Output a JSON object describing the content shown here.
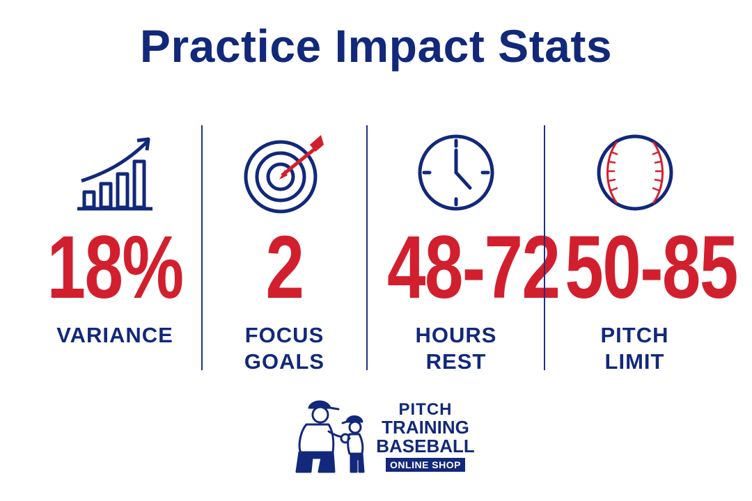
{
  "title": "Practice Impact Stats",
  "colors": {
    "navy": "#12287a",
    "red": "#d21f2e"
  },
  "stats": [
    {
      "icon": "bar-chart-growth-icon",
      "value": "18%",
      "label_lines": [
        "VARIANCE"
      ]
    },
    {
      "icon": "target-arrow-icon",
      "value": "2",
      "label_lines": [
        "FOCUS",
        "GOALS"
      ]
    },
    {
      "icon": "clock-icon",
      "value": "48-72",
      "label_lines": [
        "HOURS",
        "REST"
      ]
    },
    {
      "icon": "baseball-icon",
      "value": "50-85",
      "label_lines": [
        "PITCH",
        "LIMIT"
      ]
    }
  ],
  "logo": {
    "line1": "PITCH",
    "line2": "TRAINING",
    "line3": "BASEBALL",
    "badge": "ONLINE SHOP",
    "illustration": "coach-and-kid-illustration"
  }
}
